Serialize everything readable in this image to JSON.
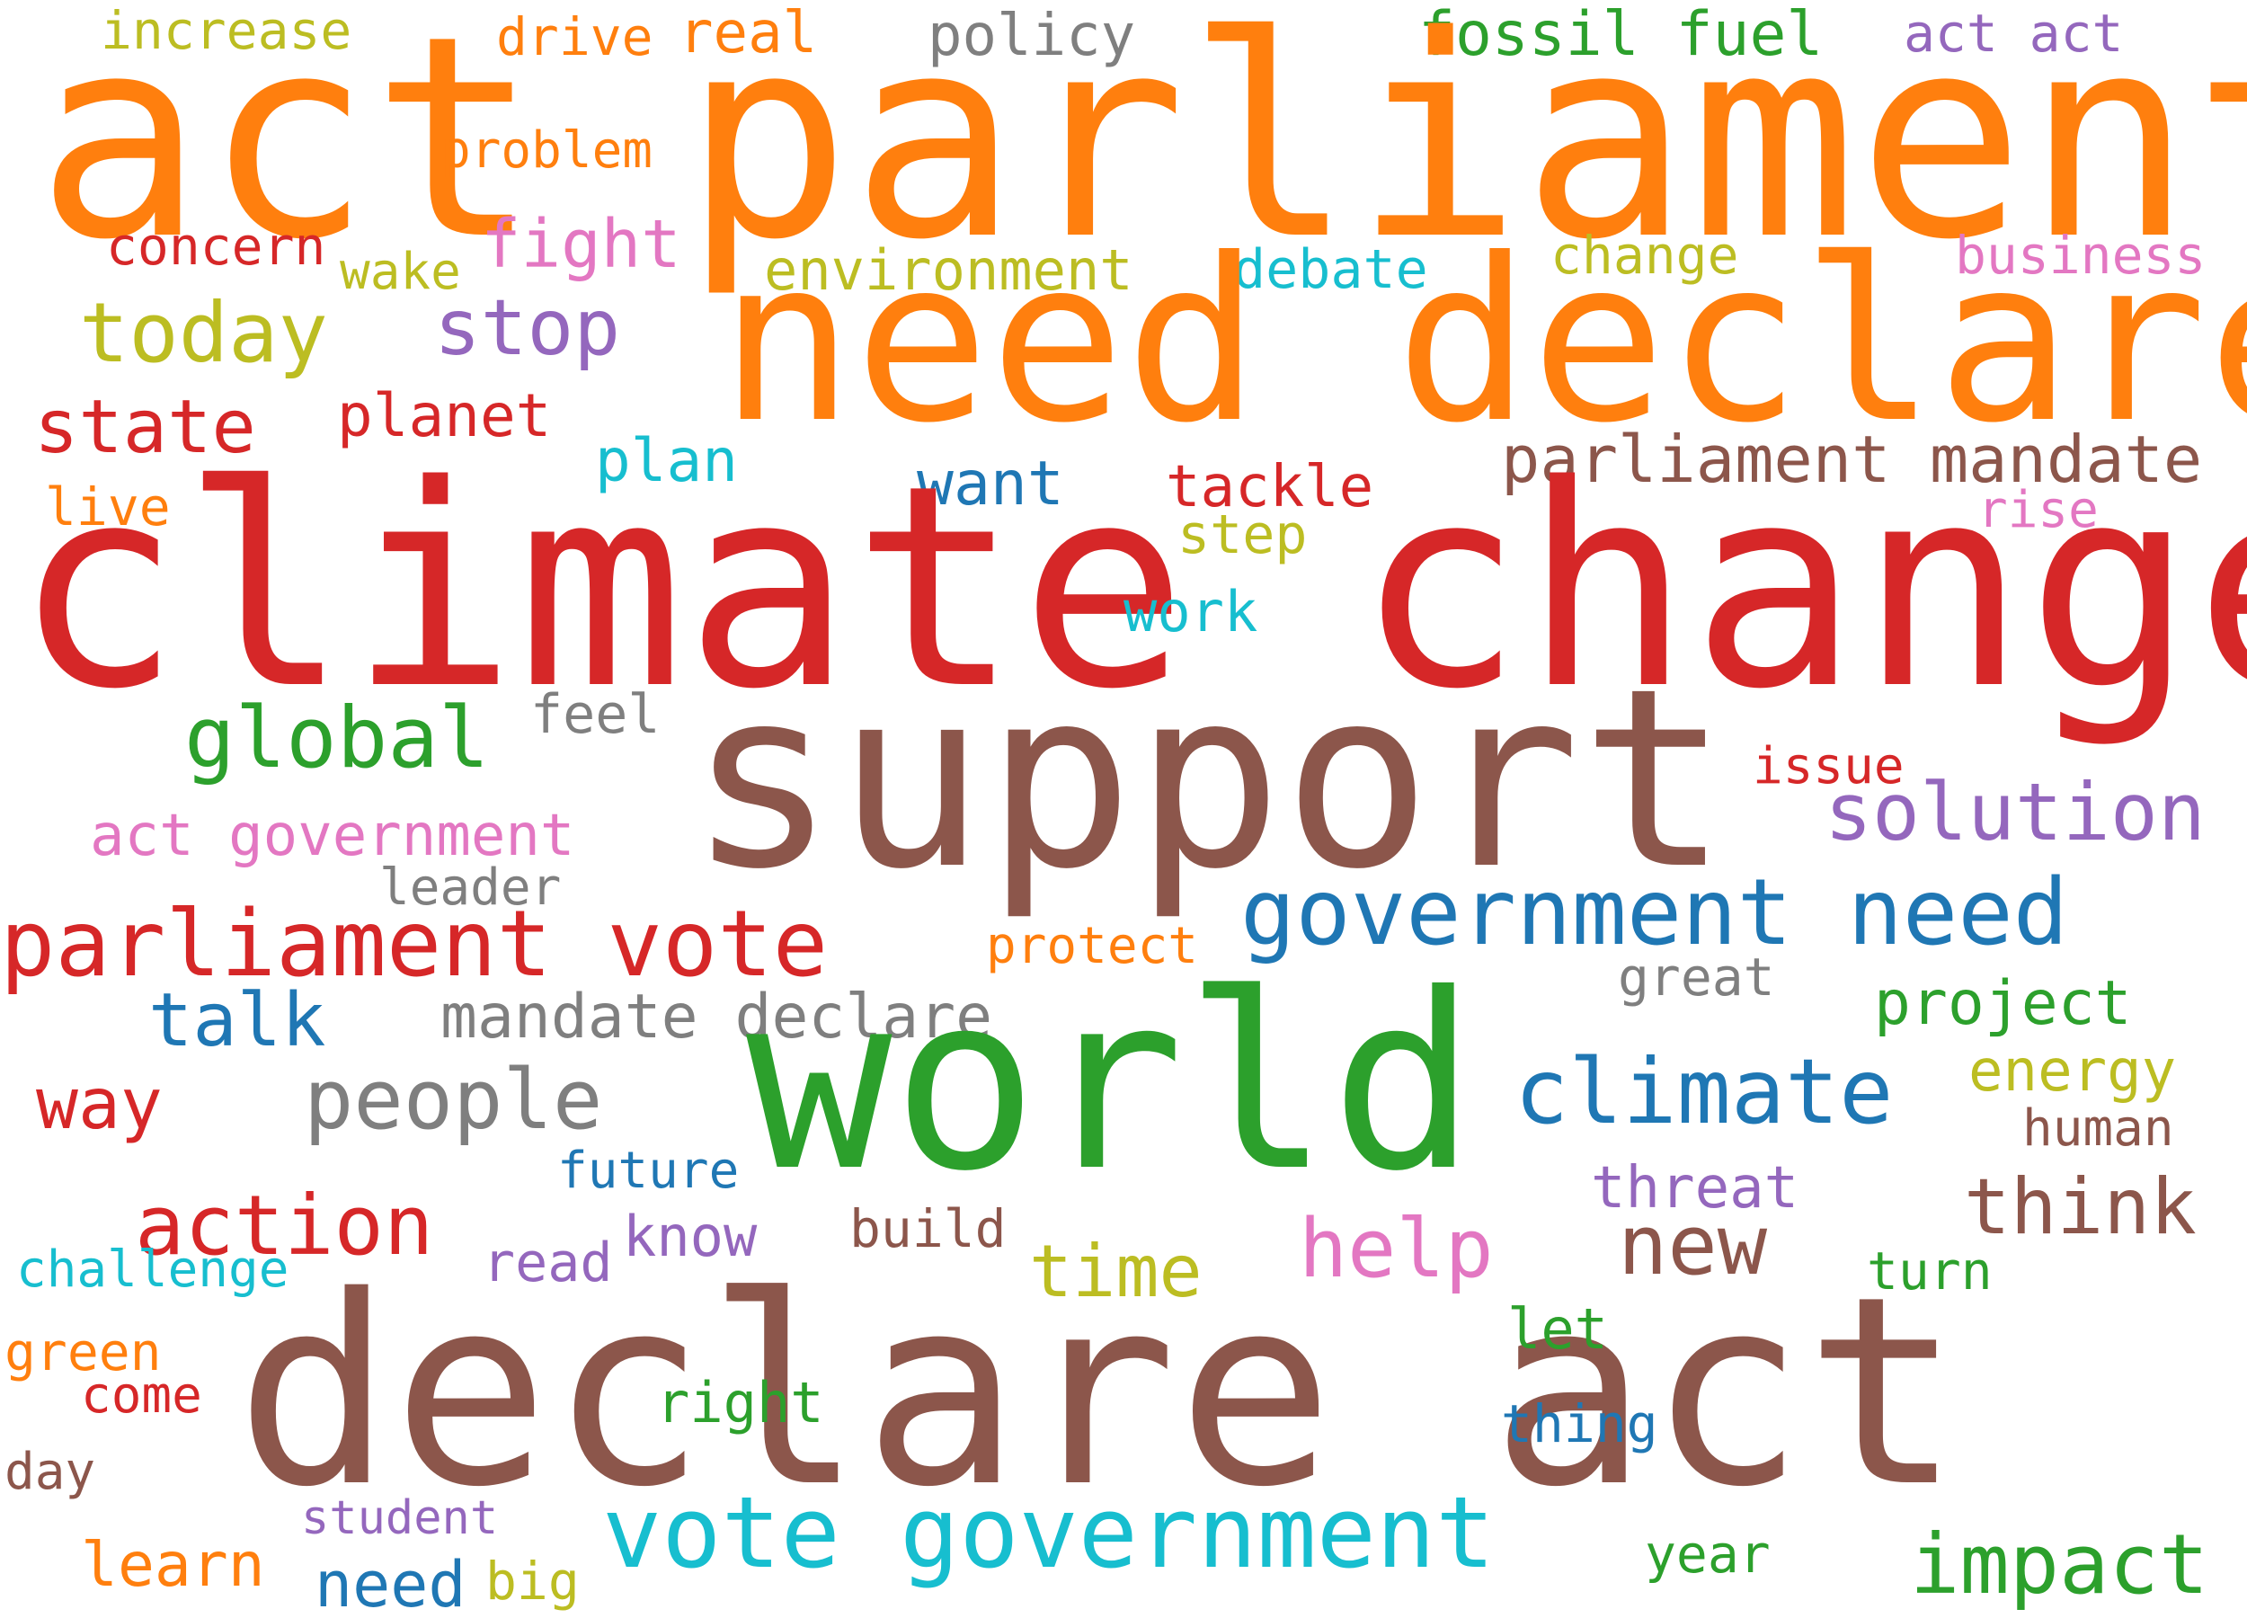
{
  "palette": {
    "orange": "#ff7f0e",
    "red": "#d62728",
    "brown": "#8c564b",
    "green": "#2ca02c",
    "blue": "#1f77b4",
    "cyan": "#17becf",
    "olive": "#bcbd22",
    "purple": "#9467bd",
    "pink": "#e377c2",
    "gray": "#7f7f7f"
  },
  "words": [
    {
      "text": "increase",
      "color": "olive"
    },
    {
      "text": "drive",
      "color": "orange"
    },
    {
      "text": "real",
      "color": "orange"
    },
    {
      "text": "policy",
      "color": "gray"
    },
    {
      "text": "fossil fuel",
      "color": "green"
    },
    {
      "text": "act act",
      "color": "purple"
    },
    {
      "text": "act",
      "color": "orange"
    },
    {
      "text": "parliament",
      "color": "orange"
    },
    {
      "text": "problem",
      "color": "orange"
    },
    {
      "text": "concern",
      "color": "red"
    },
    {
      "text": "fight",
      "color": "pink"
    },
    {
      "text": "wake",
      "color": "olive"
    },
    {
      "text": "environment",
      "color": "olive"
    },
    {
      "text": "debate",
      "color": "cyan"
    },
    {
      "text": "change",
      "color": "olive"
    },
    {
      "text": "business",
      "color": "pink"
    },
    {
      "text": "today",
      "color": "olive"
    },
    {
      "text": "stop",
      "color": "purple"
    },
    {
      "text": "need declare",
      "color": "orange"
    },
    {
      "text": "state",
      "color": "red"
    },
    {
      "text": "planet",
      "color": "red"
    },
    {
      "text": "parliament mandate",
      "color": "brown"
    },
    {
      "text": "plan",
      "color": "cyan"
    },
    {
      "text": "want",
      "color": "blue"
    },
    {
      "text": "tackle",
      "color": "red"
    },
    {
      "text": "live",
      "color": "orange"
    },
    {
      "text": "rise",
      "color": "pink"
    },
    {
      "text": "step",
      "color": "olive"
    },
    {
      "text": "climate change",
      "color": "red"
    },
    {
      "text": "work",
      "color": "cyan"
    },
    {
      "text": "global",
      "color": "green"
    },
    {
      "text": "feel",
      "color": "gray"
    },
    {
      "text": "support",
      "color": "brown"
    },
    {
      "text": "issue",
      "color": "red"
    },
    {
      "text": "solution",
      "color": "purple"
    },
    {
      "text": "act government",
      "color": "pink"
    },
    {
      "text": "leader",
      "color": "gray"
    },
    {
      "text": "government need",
      "color": "blue"
    },
    {
      "text": "parliament vote",
      "color": "red"
    },
    {
      "text": "protect",
      "color": "orange"
    },
    {
      "text": "great",
      "color": "gray"
    },
    {
      "text": "talk",
      "color": "blue"
    },
    {
      "text": "mandate declare",
      "color": "gray"
    },
    {
      "text": "project",
      "color": "green"
    },
    {
      "text": "world",
      "color": "green"
    },
    {
      "text": "energy",
      "color": "olive"
    },
    {
      "text": "way",
      "color": "red"
    },
    {
      "text": "people",
      "color": "gray"
    },
    {
      "text": "climate",
      "color": "blue"
    },
    {
      "text": "human",
      "color": "brown"
    },
    {
      "text": "future",
      "color": "blue"
    },
    {
      "text": "threat",
      "color": "purple"
    },
    {
      "text": "action",
      "color": "red"
    },
    {
      "text": "think",
      "color": "brown"
    },
    {
      "text": "know",
      "color": "purple"
    },
    {
      "text": "build",
      "color": "brown"
    },
    {
      "text": "help",
      "color": "pink"
    },
    {
      "text": "new",
      "color": "brown"
    },
    {
      "text": "read",
      "color": "purple"
    },
    {
      "text": "challenge",
      "color": "cyan"
    },
    {
      "text": "time",
      "color": "olive"
    },
    {
      "text": "turn",
      "color": "green"
    },
    {
      "text": "declare act",
      "color": "brown"
    },
    {
      "text": "green",
      "color": "orange"
    },
    {
      "text": "let",
      "color": "green"
    },
    {
      "text": "come",
      "color": "red"
    },
    {
      "text": "right",
      "color": "green"
    },
    {
      "text": "thing",
      "color": "blue"
    },
    {
      "text": "day",
      "color": "brown"
    },
    {
      "text": "student",
      "color": "purple"
    },
    {
      "text": "vote government",
      "color": "cyan"
    },
    {
      "text": "year",
      "color": "green"
    },
    {
      "text": "impact",
      "color": "green"
    },
    {
      "text": "learn",
      "color": "orange"
    },
    {
      "text": "need",
      "color": "blue"
    },
    {
      "text": "big",
      "color": "olive"
    }
  ]
}
